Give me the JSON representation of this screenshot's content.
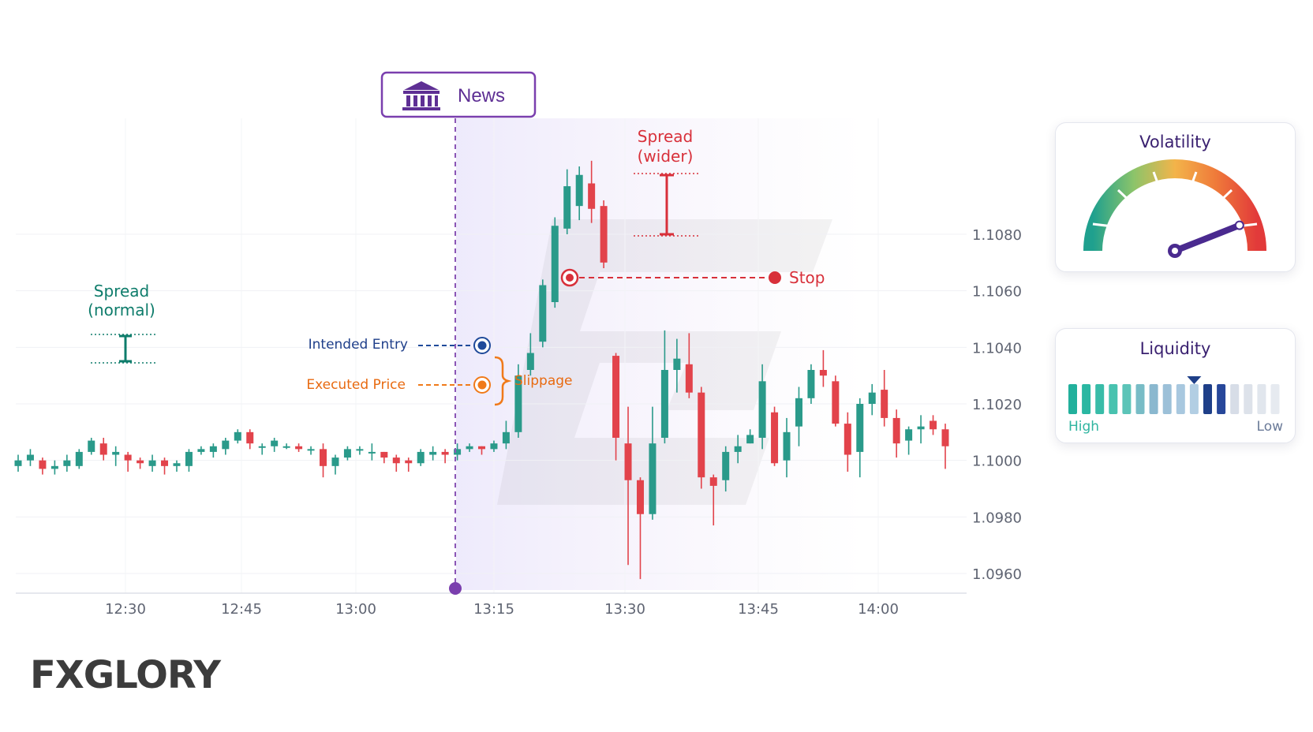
{
  "chart_data": {
    "type": "candlestick",
    "y_ticks": [
      "1.1080",
      "1.1060",
      "1.1040",
      "1.1020",
      "1.1000",
      "1.0980",
      "1.0960"
    ],
    "ylim": [
      1.0952,
      1.1106
    ],
    "x_ticks": [
      "12:30",
      "12:45",
      "13:00",
      "13:15",
      "13:30",
      "13:45",
      "14:00"
    ],
    "grid": true,
    "candles": [
      [
        1.0998,
        1.1,
        1.1002,
        1.0996
      ],
      [
        1.1,
        1.1002,
        1.1004,
        1.0998
      ],
      [
        1.1,
        1.0997,
        1.1001,
        1.0995
      ],
      [
        1.0997,
        1.0998,
        1.1,
        1.0995
      ],
      [
        1.0998,
        1.1,
        1.1002,
        1.0996
      ],
      [
        1.0998,
        1.1003,
        1.1004,
        1.0997
      ],
      [
        1.1003,
        1.1007,
        1.1008,
        1.1002
      ],
      [
        1.1006,
        1.1002,
        1.1008,
        1.1
      ],
      [
        1.1002,
        1.1003,
        1.1005,
        1.0998
      ],
      [
        1.1002,
        1.1,
        1.1003,
        1.0996
      ],
      [
        1.1,
        1.0999,
        1.1001,
        1.0997
      ],
      [
        1.0998,
        1.1,
        1.1002,
        1.0996
      ],
      [
        1.1,
        1.0998,
        1.1001,
        1.0995
      ],
      [
        1.0998,
        1.0999,
        1.1,
        1.0996
      ],
      [
        1.0998,
        1.1003,
        1.1004,
        1.0996
      ],
      [
        1.1003,
        1.1004,
        1.1005,
        1.1002
      ],
      [
        1.1003,
        1.1005,
        1.1006,
        1.1001
      ],
      [
        1.1004,
        1.1007,
        1.1008,
        1.1002
      ],
      [
        1.1007,
        1.101,
        1.1011,
        1.1006
      ],
      [
        1.101,
        1.1006,
        1.1011,
        1.1004
      ],
      [
        1.1005,
        1.1005,
        1.1006,
        1.1002
      ],
      [
        1.1005,
        1.1007,
        1.1008,
        1.1003
      ],
      [
        1.1005,
        1.1005,
        1.1006,
        1.1004
      ],
      [
        1.1005,
        1.1004,
        1.1006,
        1.1003
      ],
      [
        1.1004,
        1.1004,
        1.1005,
        1.1002
      ],
      [
        1.1004,
        1.0998,
        1.1006,
        1.0994
      ],
      [
        1.0998,
        1.1001,
        1.1002,
        1.0995
      ],
      [
        1.1001,
        1.1004,
        1.1005,
        1.1
      ],
      [
        1.1004,
        1.1004,
        1.1005,
        1.1002
      ],
      [
        1.1003,
        1.1003,
        1.1006,
        1.1
      ],
      [
        1.1003,
        1.1001,
        1.1003,
        1.0999
      ],
      [
        1.1001,
        1.0999,
        1.1002,
        1.0996
      ],
      [
        1.1,
        1.0999,
        1.1001,
        1.0996
      ],
      [
        1.0999,
        1.1003,
        1.1004,
        1.0998
      ],
      [
        1.1002,
        1.1003,
        1.1005,
        1.1
      ],
      [
        1.1003,
        1.1002,
        1.1004,
        1.0999
      ],
      [
        1.1002,
        1.1004,
        1.1006,
        1.1
      ],
      [
        1.1004,
        1.1005,
        1.1006,
        1.1003
      ],
      [
        1.1005,
        1.1004,
        1.1005,
        1.1002
      ],
      [
        1.1004,
        1.1006,
        1.1007,
        1.1003
      ],
      [
        1.1006,
        1.101,
        1.1014,
        1.1004
      ],
      [
        1.101,
        1.103,
        1.1034,
        1.1008
      ],
      [
        1.1032,
        1.1038,
        1.1045,
        1.103
      ],
      [
        1.1042,
        1.1062,
        1.1064,
        1.104
      ],
      [
        1.1056,
        1.1083,
        1.1086,
        1.1054
      ],
      [
        1.1082,
        1.1097,
        1.1103,
        1.108
      ],
      [
        1.109,
        1.1101,
        1.1104,
        1.1085
      ],
      [
        1.1098,
        1.1089,
        1.1106,
        1.1084
      ],
      [
        1.109,
        1.107,
        1.1092,
        1.1068
      ],
      [
        1.1037,
        1.1008,
        1.1038,
        1.1
      ],
      [
        1.1006,
        1.0993,
        1.1019,
        1.0963
      ],
      [
        1.0993,
        1.0981,
        1.0994,
        1.0958
      ],
      [
        1.0981,
        1.1006,
        1.1019,
        1.0979
      ],
      [
        1.1008,
        1.1032,
        1.1046,
        1.1006
      ],
      [
        1.1032,
        1.1036,
        1.1043,
        1.1024
      ],
      [
        1.1034,
        1.1024,
        1.1045,
        1.1022
      ],
      [
        1.1024,
        1.0994,
        1.1026,
        1.099
      ],
      [
        1.0994,
        1.0991,
        1.0995,
        1.0977
      ],
      [
        1.0993,
        1.1003,
        1.1005,
        1.0989
      ],
      [
        1.1003,
        1.1005,
        1.1009,
        1.0999
      ],
      [
        1.1006,
        1.1009,
        1.1011,
        1.1006
      ],
      [
        1.1008,
        1.1028,
        1.1034,
        1.1004
      ],
      [
        1.1017,
        1.0999,
        1.1019,
        1.0998
      ],
      [
        1.1,
        1.101,
        1.1015,
        1.0994
      ],
      [
        1.1012,
        1.1022,
        1.1026,
        1.1005
      ],
      [
        1.1022,
        1.1032,
        1.1034,
        1.102
      ],
      [
        1.1032,
        1.103,
        1.1039,
        1.1026
      ],
      [
        1.1028,
        1.1013,
        1.103,
        1.1012
      ],
      [
        1.1013,
        1.1002,
        1.1017,
        1.0996
      ],
      [
        1.1003,
        1.102,
        1.1022,
        1.0994
      ],
      [
        1.102,
        1.1024,
        1.1027,
        1.1016
      ],
      [
        1.1025,
        1.1015,
        1.1032,
        1.1012
      ],
      [
        1.1015,
        1.1006,
        1.1018,
        1.1001
      ],
      [
        1.1007,
        1.1011,
        1.1012,
        1.1002
      ],
      [
        1.1011,
        1.1012,
        1.1016,
        1.1006
      ],
      [
        1.1014,
        1.1011,
        1.1016,
        1.1009
      ],
      [
        1.1011,
        1.1005,
        1.1013,
        1.0997
      ]
    ],
    "annotations": {
      "news": "News",
      "spread_normal": [
        "Spread",
        "(normal)"
      ],
      "spread_wider": [
        "Spread",
        "(wider)"
      ],
      "stop": "Stop",
      "intended_entry": "Intended Entry",
      "executed_price": "Executed Price",
      "slippage": "Slippage"
    }
  },
  "volatility": {
    "title": "Volatility",
    "level": 0.88
  },
  "liquidity": {
    "title": "Liquidity",
    "high_label": "High",
    "low_label": "Low",
    "marker_bar": 8
  },
  "brand": {
    "logo_prefix": "FX",
    "logo_suffix": "GLORY"
  },
  "colors": {
    "up": "#2a9a8a",
    "down": "#e2434b",
    "accent": "#6b3fa0",
    "entry": "#1f4a9a",
    "exec": "#f07a1a"
  }
}
